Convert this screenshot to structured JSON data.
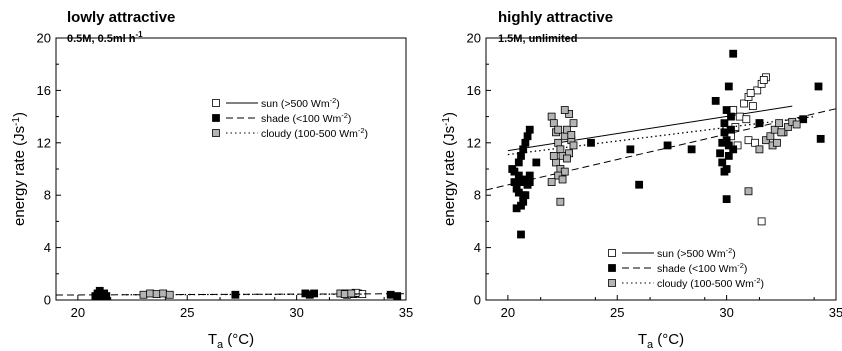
{
  "chart_data": [
    {
      "type": "scatter",
      "title": "lowly attractive",
      "subtitle": "0.5M, 0.5ml h",
      "subtitle_sup": "-1",
      "xlabel_main": "T",
      "xlabel_sub": "a",
      "xlabel_rest": " (°C)",
      "ylabel": "energy rate (Js",
      "ylabel_sup": "-1",
      "ylabel_end": ")",
      "xlim": [
        19,
        35
      ],
      "ylim": [
        0,
        20
      ],
      "xticks": [
        20,
        25,
        30,
        35
      ],
      "yticks": [
        0,
        4,
        8,
        12,
        16,
        20
      ],
      "legend_position": "upper-right",
      "legend": [
        {
          "marker": "open-square",
          "line": "solid",
          "text": "sun (>500 Wm",
          "sup": "-2",
          "end": ")"
        },
        {
          "marker": "filled-square",
          "line": "dashed",
          "text": "shade (<100 Wm",
          "sup": "-2",
          "end": ")"
        },
        {
          "marker": "grey-square",
          "line": "dotted",
          "text": "cloudy (100-500 Wm",
          "sup": "-2",
          "end": ")"
        }
      ],
      "series": [
        {
          "style": "sun",
          "x": [
            32.2,
            32.4,
            32.6,
            32.8,
            33.0,
            32.3,
            32.7
          ],
          "y": [
            0.5,
            0.5,
            0.45,
            0.5,
            0.45,
            0.4,
            0.55
          ],
          "fit": {
            "x": [
              32,
              33
            ],
            "y": [
              0.45,
              0.47
            ]
          }
        },
        {
          "style": "shade",
          "x": [
            20.8,
            20.9,
            21.0,
            21.1,
            21.2,
            20.9,
            21.0,
            21.3,
            27.2,
            30.4,
            30.6,
            30.8,
            34.3,
            34.6
          ],
          "y": [
            0.3,
            0.5,
            0.7,
            0.3,
            0.5,
            0.2,
            0.4,
            0.3,
            0.4,
            0.5,
            0.4,
            0.5,
            0.4,
            0.3
          ],
          "fit": {
            "x": [
              19,
              35
            ],
            "y": [
              0.38,
              0.48
            ]
          }
        },
        {
          "style": "cloudy",
          "x": [
            23.0,
            23.3,
            23.6,
            23.9,
            24.2,
            32.0,
            32.2,
            32.5
          ],
          "y": [
            0.4,
            0.5,
            0.45,
            0.5,
            0.4,
            0.5,
            0.45,
            0.5
          ],
          "fit": {
            "x": [
              22,
              33
            ],
            "y": [
              0.4,
              0.45
            ]
          }
        }
      ]
    },
    {
      "type": "scatter",
      "title": "highly attractive",
      "subtitle": "1.5M, unlimited",
      "subtitle_sup": "",
      "xlabel_main": "T",
      "xlabel_sub": "a",
      "xlabel_rest": " (°C)",
      "ylabel": "energy rate (Js",
      "ylabel_sup": "-1",
      "ylabel_end": ")",
      "xlim": [
        19,
        35
      ],
      "ylim": [
        0,
        20
      ],
      "xticks": [
        20,
        25,
        30,
        35
      ],
      "yticks": [
        0,
        4,
        8,
        12,
        16,
        20
      ],
      "legend_position": "lower-right",
      "legend": [
        {
          "marker": "open-square",
          "line": "solid",
          "text": "sun (>500 Wm",
          "sup": "-2",
          "end": ")"
        },
        {
          "marker": "filled-square",
          "line": "dashed",
          "text": "shade (<100 Wm",
          "sup": "-2",
          "end": ")"
        },
        {
          "marker": "grey-square",
          "line": "dotted",
          "text": "cloudy (100-500 Wm",
          "sup": "-2",
          "end": ")"
        }
      ],
      "series": [
        {
          "style": "sun",
          "x": [
            30.2,
            30.4,
            30.6,
            30.8,
            31.0,
            31.2,
            31.4,
            31.6,
            31.8,
            30.5,
            31.0,
            31.5,
            30.3,
            31.1,
            31.7,
            30.9,
            31.3,
            31.6
          ],
          "y": [
            12.5,
            13.2,
            14.0,
            15.0,
            15.5,
            14.8,
            16.0,
            16.5,
            17.0,
            11.8,
            12.2,
            13.5,
            14.5,
            15.8,
            16.8,
            13.8,
            12.0,
            6.0
          ],
          "fit": {
            "x": [
              20,
              33
            ],
            "y": [
              11.4,
              14.8
            ]
          }
        },
        {
          "style": "shade",
          "x": [
            20.2,
            20.3,
            20.4,
            20.5,
            20.6,
            20.7,
            20.8,
            20.9,
            21.0,
            20.3,
            20.5,
            20.7,
            20.9,
            20.4,
            20.6,
            20.8,
            21.0,
            20.6,
            20.8,
            20.9,
            21.0,
            20.7,
            20.5,
            20.6,
            21.3,
            23.8,
            25.6,
            26.0,
            27.3,
            28.4,
            29.5,
            29.7,
            29.8,
            29.9,
            30.0,
            30.1,
            30.2,
            29.8,
            29.9,
            30.0,
            30.1,
            30.0,
            30.2,
            30.1,
            29.9,
            30.3,
            30.0,
            30.3,
            31.5,
            33.5,
            34.2,
            34.3
          ],
          "y": [
            10.0,
            9.0,
            8.5,
            9.5,
            9.0,
            8.0,
            9.2,
            8.8,
            9.5,
            9.8,
            8.2,
            7.5,
            8.8,
            7.0,
            7.2,
            8.0,
            9.0,
            11.0,
            12.0,
            12.5,
            13.0,
            11.5,
            10.5,
            5.0,
            10.5,
            12.0,
            11.5,
            8.8,
            11.8,
            11.5,
            15.2,
            11.2,
            12.0,
            13.5,
            12.2,
            11.8,
            14.0,
            10.5,
            9.8,
            10.0,
            11.0,
            14.5,
            13.0,
            16.3,
            12.8,
            11.5,
            7.7,
            18.8,
            13.5,
            13.8,
            16.3,
            12.3
          ],
          "fit": {
            "x": [
              19,
              35
            ],
            "y": [
              8.4,
              14.6
            ]
          }
        },
        {
          "style": "cloudy",
          "x": [
            22.0,
            22.1,
            22.2,
            22.3,
            22.4,
            22.5,
            22.6,
            22.7,
            22.8,
            22.9,
            23.0,
            22.2,
            22.4,
            22.6,
            22.8,
            23.0,
            22.3,
            22.5,
            22.7,
            22.9,
            22.1,
            22.6,
            22.0,
            22.4,
            22.3,
            31.8,
            32.0,
            32.2,
            32.4,
            32.6,
            32.8,
            33.0,
            33.2,
            32.1,
            32.3,
            32.5,
            31.0,
            31.5
          ],
          "y": [
            14.0,
            13.5,
            12.8,
            12.0,
            11.5,
            11.0,
            12.5,
            13.0,
            14.2,
            12.2,
            11.8,
            10.5,
            10.0,
            9.8,
            11.2,
            13.5,
            9.5,
            9.2,
            10.8,
            12.6,
            11.0,
            14.5,
            9.0,
            7.5,
            13.0,
            12.2,
            12.5,
            13.0,
            13.5,
            12.8,
            13.2,
            13.6,
            13.4,
            11.8,
            12.0,
            12.8,
            8.3,
            11.5
          ],
          "fit": {
            "x": [
              20,
              34
            ],
            "y": [
              11.1,
              14.0
            ]
          }
        }
      ]
    }
  ]
}
